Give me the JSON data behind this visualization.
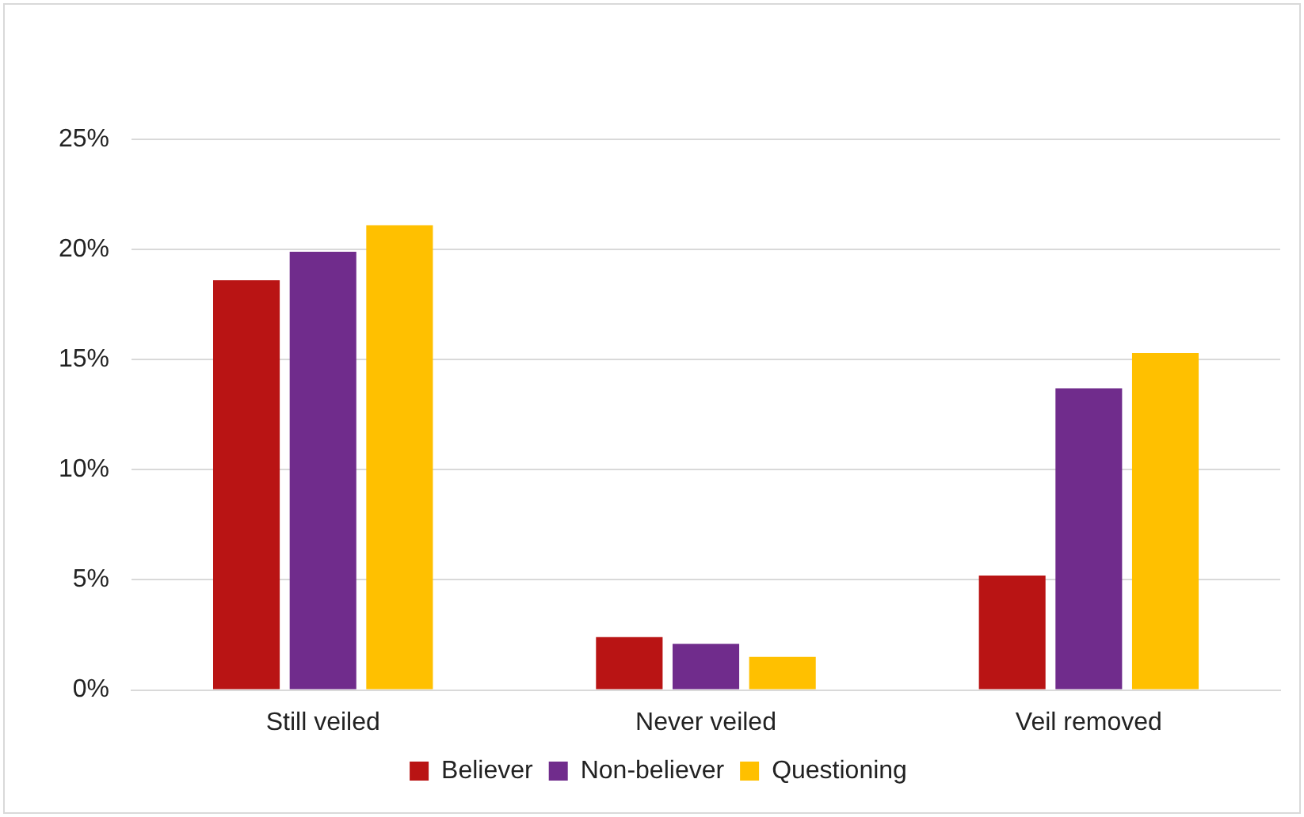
{
  "chart_data": {
    "type": "bar",
    "categories": [
      "Still veiled",
      "Never veiled",
      "Veil removed"
    ],
    "series": [
      {
        "name": "Believer",
        "color": "#b91414",
        "values": [
          18.6,
          2.4,
          5.2
        ]
      },
      {
        "name": "Non-believer",
        "color": "#702c8c",
        "values": [
          19.9,
          2.1,
          13.7
        ]
      },
      {
        "name": "Questioning",
        "color": "#ffc000",
        "values": [
          21.1,
          1.5,
          15.3
        ]
      }
    ],
    "ylim": [
      0,
      25
    ],
    "yticks": [
      {
        "value": 0,
        "label": "0%"
      },
      {
        "value": 5,
        "label": "5%"
      },
      {
        "value": 10,
        "label": "10%"
      },
      {
        "value": 15,
        "label": "15%"
      },
      {
        "value": 20,
        "label": "20%"
      },
      {
        "value": 25,
        "label": "25%"
      }
    ],
    "grid": "y",
    "legend": "bottom"
  }
}
